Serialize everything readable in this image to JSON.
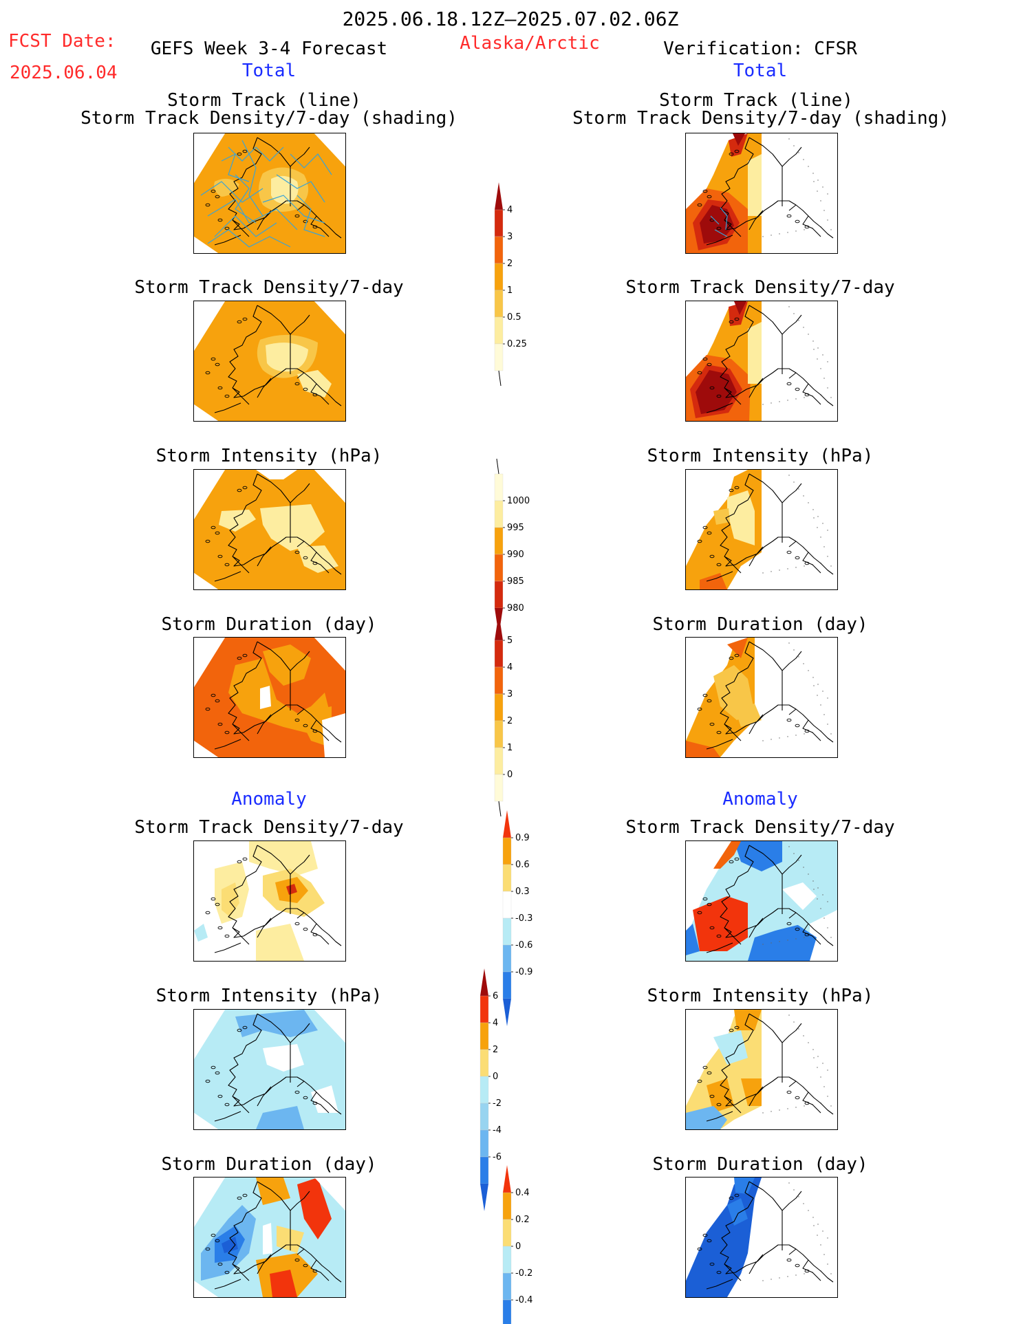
{
  "header": {
    "title": "2025.06.18.12Z—2025.07.02.06Z",
    "fcst_label": "FCST Date:",
    "fcst_date": "2025.06.04",
    "left_title": "GEFS Week 3-4 Forecast",
    "region": "Alaska/Arctic",
    "right_title": "Verification: CFSR"
  },
  "sections": {
    "total": "Total",
    "anomaly": "Anomaly"
  },
  "panel_titles": {
    "track_line": "Storm Track (line)",
    "track_shading": "Storm Track Density/7-day (shading)",
    "density": "Storm Track Density/7-day",
    "intensity": "Storm Intensity (hPa)",
    "duration": "Storm Duration (day)"
  },
  "colorbars": {
    "density_total": {
      "ticks": [
        "4",
        "3",
        "2",
        "1",
        "0.5",
        "0.25"
      ],
      "colors": [
        "#9e0b0b",
        "#d42a0e",
        "#f2640c",
        "#f7a20d",
        "#f8c648",
        "#fdeda0",
        "#fffbd8"
      ]
    },
    "intensity_total": {
      "ticks": [
        "1000",
        "995",
        "990",
        "985",
        "980"
      ],
      "colors": [
        "#fffbd8",
        "#fdeda0",
        "#f7a20d",
        "#f2640c",
        "#d42a0e",
        "#9e0b0b"
      ]
    },
    "duration_total": {
      "ticks": [
        "5",
        "4",
        "3",
        "2",
        "1",
        "0"
      ],
      "colors": [
        "#9e0b0b",
        "#d42a0e",
        "#f2640c",
        "#f7a20d",
        "#f8c648",
        "#fdeda0",
        "#fffbd8"
      ]
    },
    "density_anom": {
      "ticks": [
        "0.9",
        "0.6",
        "0.3",
        "-0.3",
        "-0.6",
        "-0.9"
      ],
      "colors": [
        "#f2340c",
        "#f7a20d",
        "#fbdd74",
        "#ffffff",
        "#b7ebf5",
        "#6cb6f0",
        "#2a7ee8",
        "#1b5fd6"
      ]
    },
    "intensity_anom": {
      "ticks": [
        "6",
        "4",
        "2",
        "0",
        "-2",
        "-4",
        "-6"
      ],
      "colors": [
        "#9e0b0b",
        "#f2340c",
        "#f7a20d",
        "#fbdd74",
        "#b7ebf5",
        "#98d4f0",
        "#6cb6f0",
        "#2a7ee8",
        "#1b5fd6"
      ]
    },
    "duration_anom": {
      "ticks": [
        "0.4",
        "0.2",
        "0",
        "-0.2",
        "-0.4"
      ],
      "colors": [
        "#f2340c",
        "#f7a20d",
        "#fbdd74",
        "#b7ebf5",
        "#6cb6f0",
        "#2a7ee8",
        "#1b5fd6"
      ]
    }
  },
  "palette": {
    "light_yellow": "#fdeda0",
    "yellow": "#f8c648",
    "orange": "#f7a20d",
    "dark_orange": "#f2640c",
    "red": "#d42a0e",
    "dark_red": "#9e0b0b",
    "light_blue": "#b7ebf5",
    "mid_blue": "#6cb6f0",
    "blue": "#2a7ee8",
    "dark_blue": "#1b5fd6",
    "track_line": "#3aa3d6"
  }
}
